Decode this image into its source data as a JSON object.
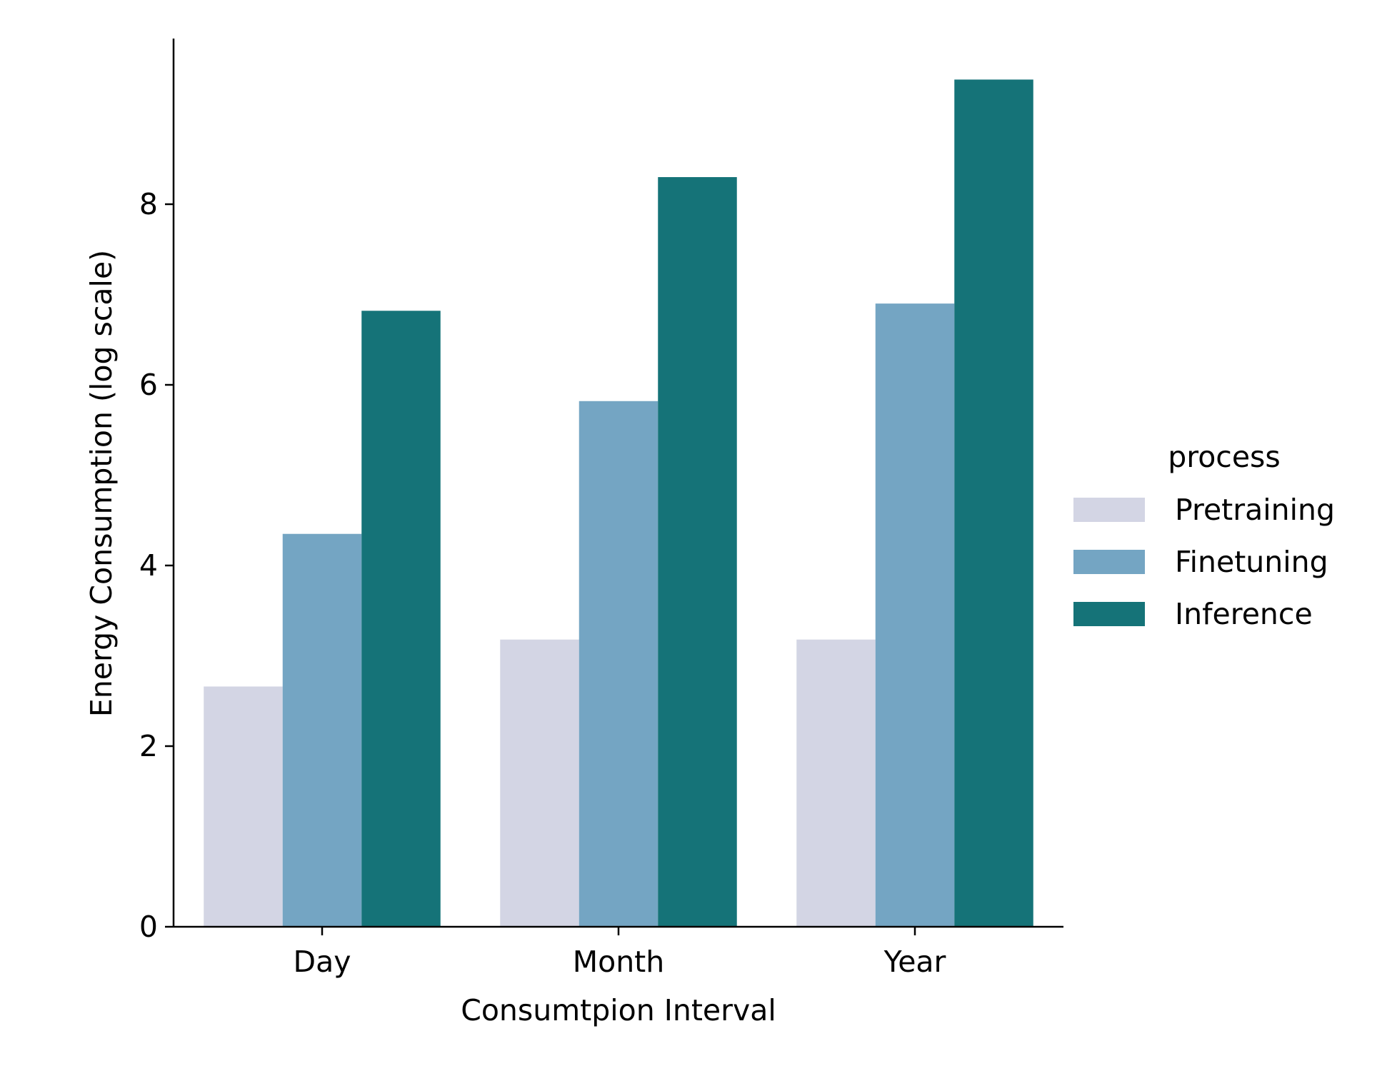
{
  "chart_data": {
    "type": "bar",
    "xlabel": "Consumtpion Interval",
    "ylabel": "Energy Consumption (log scale)",
    "categories": [
      "Day",
      "Month",
      "Year"
    ],
    "ylim": [
      0,
      9.85
    ],
    "yticks": [
      0,
      2,
      4,
      6,
      8
    ],
    "grid": false,
    "legend": {
      "title": "process",
      "placement": "right"
    },
    "series": [
      {
        "name": "Pretraining",
        "color": "#d3d5e4",
        "values": [
          2.66,
          3.18,
          3.18
        ]
      },
      {
        "name": "Finetuning",
        "color": "#74a5c3",
        "values": [
          4.35,
          5.82,
          6.9
        ]
      },
      {
        "name": "Inference",
        "color": "#157378",
        "values": [
          6.82,
          8.3,
          9.38
        ]
      }
    ]
  }
}
